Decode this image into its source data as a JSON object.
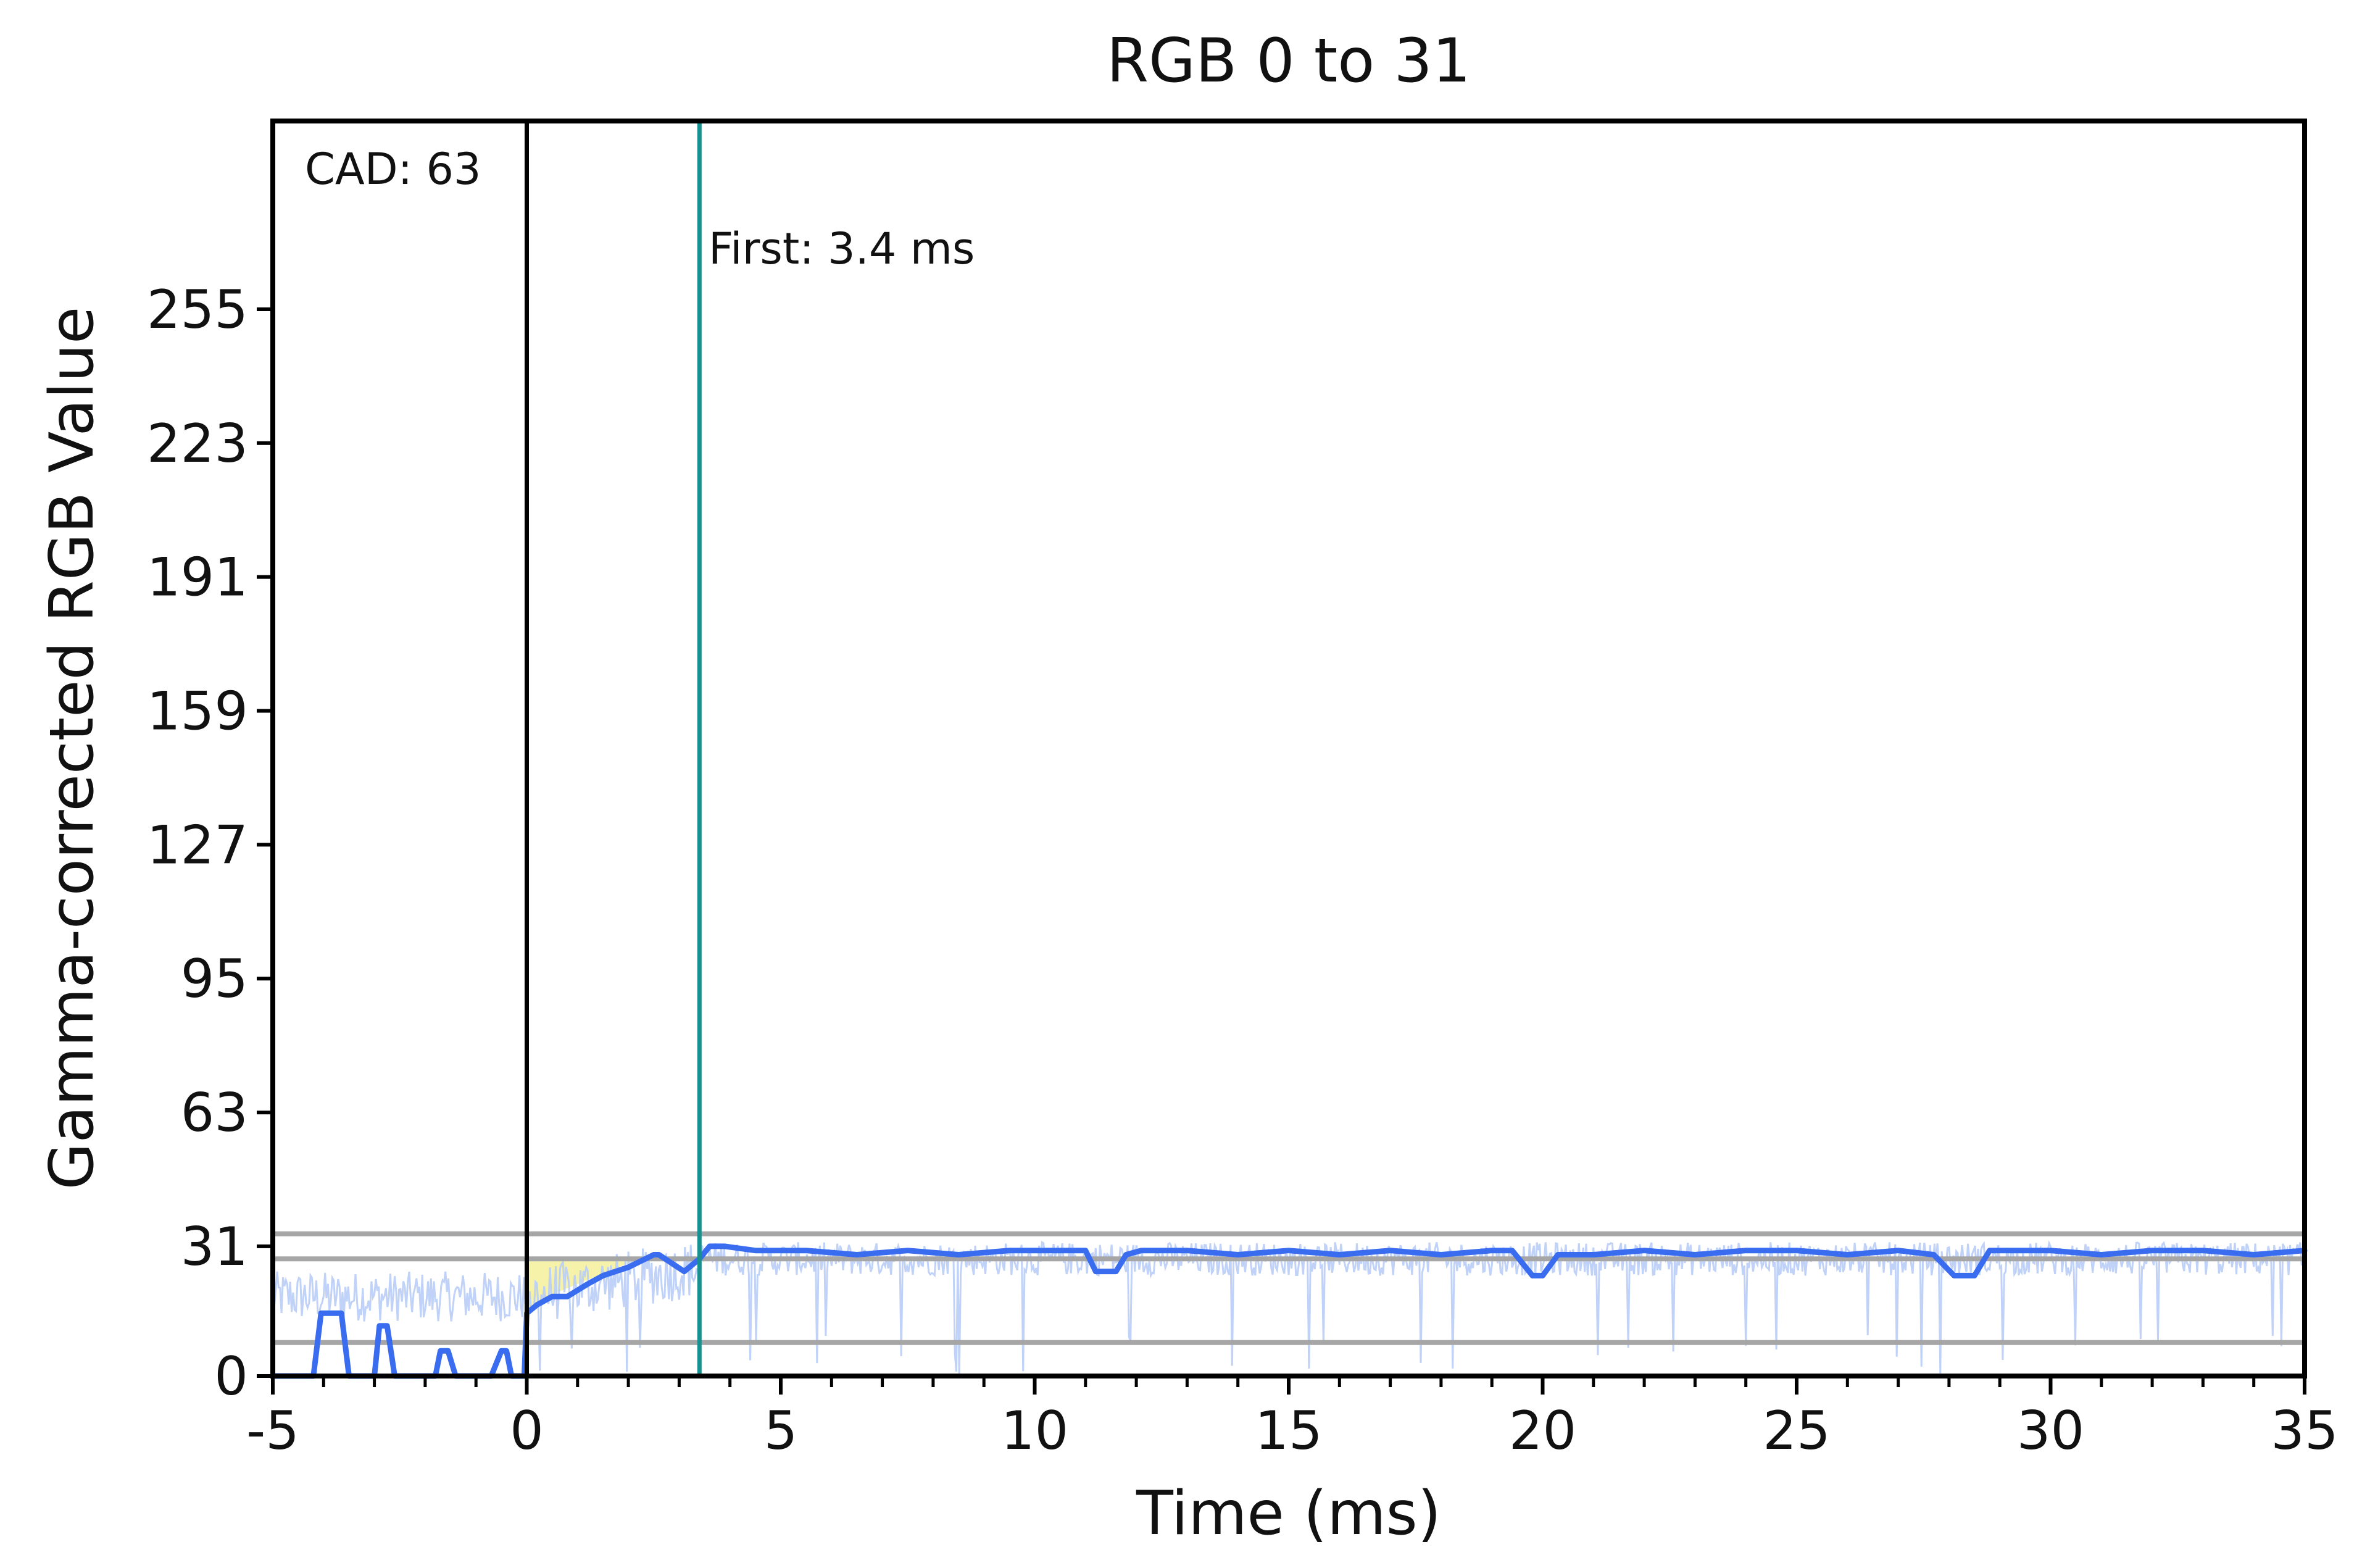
{
  "chart_data": {
    "type": "line",
    "title": "RGB 0 to 31",
    "xlabel": "Time (ms)",
    "ylabel": "Gamma-corrected RGB Value",
    "xlim": [
      -5,
      35
    ],
    "ylim": [
      0,
      300
    ],
    "x_ticks": [
      -5,
      0,
      5,
      10,
      15,
      20,
      25,
      30,
      35
    ],
    "x_tick_labels": [
      "-5",
      "0",
      "5",
      "10",
      "15",
      "20",
      "25",
      "30",
      "35"
    ],
    "x_minor_tick_step": 1,
    "y_ticks": [
      0,
      31,
      63,
      95,
      127,
      159,
      191,
      223,
      255
    ],
    "y_tick_labels": [
      "0",
      "31",
      "63",
      "95",
      "127",
      "159",
      "191",
      "223",
      "255"
    ],
    "grid": false,
    "reference_lines": {
      "horizontal": [
        8,
        28,
        34
      ],
      "vertical_start": 0,
      "first_marker": 3.4
    },
    "annotations": {
      "cad_label": "CAD: 63",
      "first_label": "First: 3.4 ms"
    },
    "colors": {
      "smoothed_line": "#3a6cf0",
      "raw_trace": "#b9cdf7",
      "start_line": "#000000",
      "first_line": "#1a8f8f",
      "reference_lines": "#a6a6a6",
      "response_fill": "#f5f09a"
    },
    "series": [
      {
        "style": "smoothed",
        "x": [
          -5,
          -4.2,
          -4.05,
          -3.65,
          -3.5,
          -3,
          -2.9,
          -2.75,
          -2.6,
          -2.5,
          -2.2,
          -1.8,
          -1.7,
          -1.55,
          -1.4,
          -0.7,
          -0.5,
          -0.4,
          -0.3,
          -0.05,
          0,
          0.2,
          0.5,
          0.8,
          1.2,
          1.5,
          2.0,
          2.5,
          2.6,
          3.1,
          3.4,
          3.6,
          3.9,
          4.5,
          5.5,
          6.5,
          7.5,
          8.5,
          9.5,
          10.5,
          11.0,
          11.2,
          11.6,
          11.8,
          12.1,
          13,
          14,
          15,
          16,
          17,
          18,
          19.0,
          19.4,
          19.8,
          20.0,
          20.3,
          21,
          22,
          23,
          24,
          25,
          26,
          27.0,
          27.7,
          28.1,
          28.3,
          28.5,
          28.8,
          30,
          31,
          32,
          33,
          34,
          35
        ],
        "y": [
          0,
          0,
          15,
          15,
          0,
          0,
          12,
          12,
          0,
          0,
          0,
          0,
          6,
          6,
          0,
          0,
          6,
          6,
          0,
          0,
          15,
          17,
          19,
          19,
          22,
          24,
          26,
          29,
          29,
          25,
          28,
          31,
          31,
          30,
          30,
          29,
          30,
          29,
          30,
          30,
          30,
          25,
          25,
          29,
          30,
          30,
          29,
          30,
          29,
          30,
          29,
          30,
          30,
          24,
          24,
          29,
          29,
          30,
          29,
          30,
          30,
          29,
          30,
          29,
          24,
          24,
          24,
          30,
          30,
          29,
          30,
          30,
          29,
          30
        ]
      }
    ]
  }
}
